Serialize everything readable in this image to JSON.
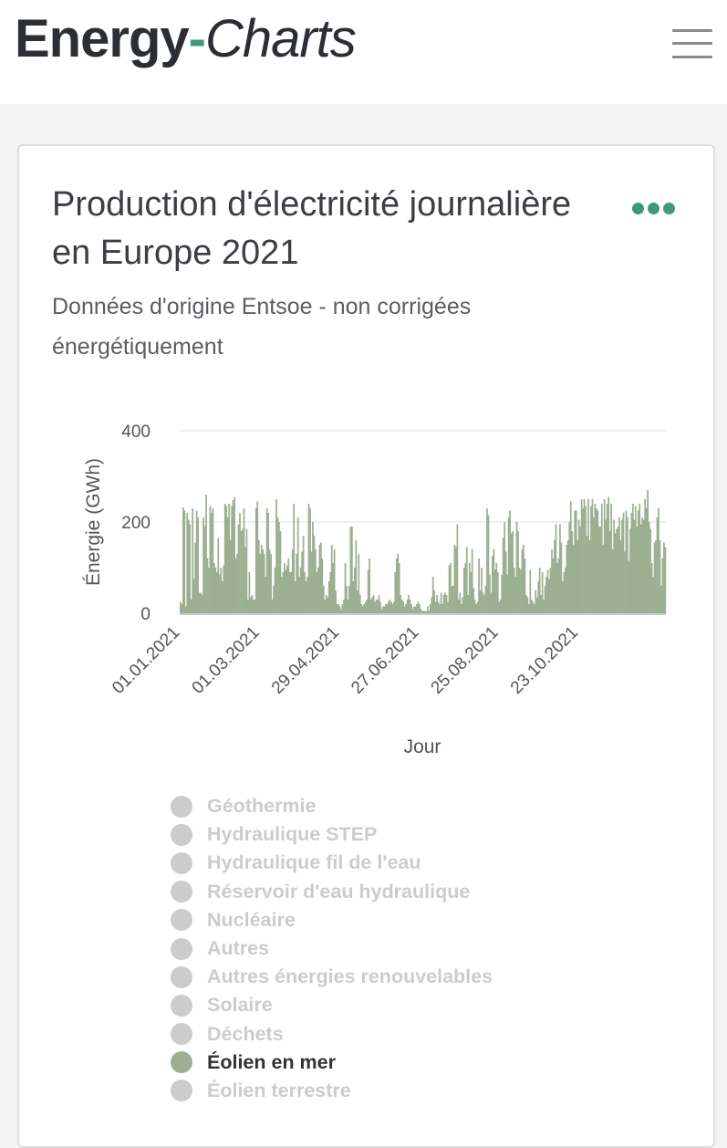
{
  "header": {
    "logo_main": "Energy",
    "logo_dash": "-",
    "logo_sub": "Charts",
    "menu_icon": "hamburger-menu-icon"
  },
  "card": {
    "title": "Production d'électricité journalière en Europe 2021",
    "subtitle": "Données d'origine Entsoe - non corrigées énergétiquement",
    "more_icon": "more-options-icon",
    "accent_color": "#3f9a7a"
  },
  "chart_data": {
    "type": "bar",
    "title": "",
    "xlabel": "Jour",
    "ylabel": "Énergie (GWh)",
    "ylim": [
      0,
      400
    ],
    "yticks": [
      0,
      200,
      400
    ],
    "x_tick_labels": [
      "01.01.2021",
      "01.03.2021",
      "29.04.2021",
      "27.06.2021",
      "25.08.2021",
      "23.10.2021"
    ],
    "x_tick_day_index": [
      0,
      59,
      118,
      177,
      236,
      295
    ],
    "grid": true,
    "bar_color": "#9caf91",
    "series": [
      {
        "name": "Éolien en mer",
        "x_start": "01.01.2021",
        "step": "1 day",
        "values": [
          25,
          20,
          232,
          225,
          15,
          220,
          205,
          195,
          30,
          230,
          75,
          155,
          225,
          210,
          45,
          45,
          40,
          210,
          190,
          260,
          120,
          100,
          235,
          220,
          230,
          110,
          100,
          90,
          165,
          85,
          100,
          70,
          105,
          240,
          235,
          210,
          240,
          160,
          235,
          248,
          255,
          120,
          130,
          195,
          220,
          180,
          185,
          230,
          145,
          185,
          30,
          90,
          35,
          40,
          30,
          30,
          230,
          245,
          160,
          130,
          150,
          140,
          130,
          80,
          230,
          220,
          140,
          130,
          30,
          60,
          100,
          250,
          210,
          200,
          180,
          80,
          90,
          110,
          95,
          105,
          120,
          90,
          90,
          140,
          240,
          70,
          130,
          210,
          80,
          100,
          135,
          170,
          90,
          70,
          80,
          240,
          230,
          135,
          200,
          170,
          140,
          90,
          100,
          150,
          155,
          120,
          60,
          30,
          40,
          35,
          70,
          90,
          150,
          110,
          140,
          50,
          20,
          20,
          15,
          10,
          20,
          30,
          110,
          60,
          30,
          60,
          190,
          190,
          70,
          100,
          160,
          50,
          130,
          40,
          20,
          15,
          20,
          25,
          30,
          95,
          120,
          30,
          35,
          40,
          25,
          30,
          30,
          40,
          25,
          10,
          15,
          15,
          20,
          20,
          25,
          30,
          25,
          20,
          25,
          90,
          120,
          130,
          110,
          40,
          30,
          25,
          15,
          20,
          30,
          40,
          30,
          20,
          10,
          15,
          15,
          20,
          25,
          20,
          10,
          5,
          5,
          5,
          5,
          15,
          5,
          20,
          35,
          80,
          50,
          25,
          40,
          25,
          20,
          45,
          20,
          40,
          45,
          40,
          25,
          105,
          110,
          60,
          60,
          150,
          145,
          195,
          30,
          45,
          20,
          35,
          100,
          110,
          145,
          40,
          110,
          90,
          140,
          55,
          30,
          20,
          25,
          120,
          50,
          100,
          45,
          40,
          60,
          230,
          215,
          85,
          45,
          125,
          140,
          95,
          110,
          90,
          25,
          30,
          85,
          165,
          200,
          135,
          85,
          210,
          225,
          175,
          180,
          100,
          80,
          200,
          180,
          100,
          95,
          140,
          150,
          120,
          40,
          35,
          20,
          95,
          30,
          25,
          20,
          50,
          35,
          70,
          100,
          40,
          90,
          30,
          60,
          80,
          95,
          75,
          100,
          140,
          120,
          160,
          195,
          110,
          120,
          195,
          155,
          70,
          90,
          100,
          150,
          160,
          200,
          245,
          180,
          150,
          225,
          225,
          160,
          205,
          190,
          250,
          230,
          250,
          235,
          170,
          250,
          160,
          235,
          250,
          210,
          240,
          230,
          225,
          190,
          190,
          240,
          150,
          250,
          205,
          240,
          255,
          180,
          240,
          140,
          205,
          175,
          185,
          190,
          210,
          160,
          205,
          220,
          135,
          225,
          210,
          115,
          185,
          220,
          240,
          205,
          235,
          190,
          225,
          240,
          195,
          210,
          205,
          250,
          230,
          270,
          200,
          185,
          110,
          80,
          155,
          160,
          210,
          230,
          160,
          60,
          120,
          155,
          145
        ]
      }
    ]
  },
  "legend": {
    "items": [
      {
        "label": "Géothermie",
        "state": "hidden"
      },
      {
        "label": "Hydraulique STEP",
        "state": "hidden"
      },
      {
        "label": "Hydraulique fil de l'eau",
        "state": "hidden"
      },
      {
        "label": "Réservoir d'eau hydraulique",
        "state": "hidden"
      },
      {
        "label": "Nucléaire",
        "state": "hidden"
      },
      {
        "label": "Autres",
        "state": "hidden"
      },
      {
        "label": "Autres énergies renouvelables",
        "state": "hidden"
      },
      {
        "label": "Solaire",
        "state": "hidden"
      },
      {
        "label": "Déchets",
        "state": "hidden"
      },
      {
        "label": "Éolien en mer",
        "state": "active",
        "color": "#9caf91"
      },
      {
        "label": "Éolien terrestre",
        "state": "hidden"
      }
    ]
  }
}
